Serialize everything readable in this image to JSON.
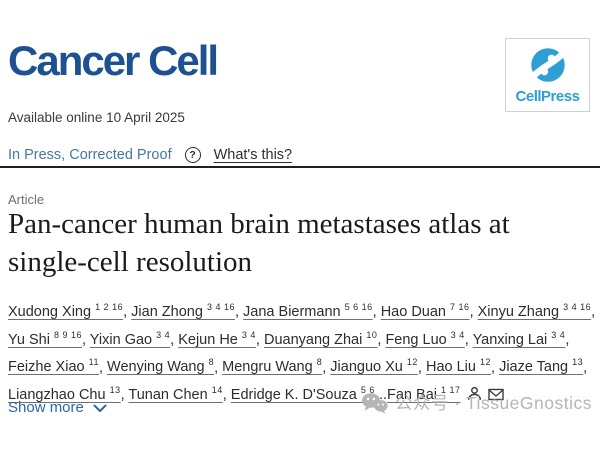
{
  "colors": {
    "logo_blue": "#1d5192",
    "cellpress_blue": "#2d9fd4",
    "status_blue": "#45799f",
    "link_blue": "#2c68a9",
    "text_dark": "#1b1b1b",
    "body_text": "#2d2d2d",
    "muted_gray": "#6e6e6e",
    "watermark_gray": "#b5b5b5",
    "rule_dark": "#202020"
  },
  "header": {
    "journal_name": "Cancer Cell",
    "publisher": "CellPress"
  },
  "meta": {
    "available_online": "Available online 10 April 2025",
    "status": "In Press, Corrected Proof",
    "help_glyph": "?",
    "whats_this": "What's this?",
    "article_type": "Article"
  },
  "title": {
    "line1": "Pan-cancer human brain metastases atlas at",
    "line2": "single-cell resolution"
  },
  "authors": [
    {
      "name": "Xudong Xing",
      "sup": "1 2 16"
    },
    {
      "name": "Jian Zhong",
      "sup": "3 4 16"
    },
    {
      "name": "Jana Biermann",
      "sup": "5 6 16"
    },
    {
      "name": "Hao Duan",
      "sup": "7 16"
    },
    {
      "name": "Xinyu Zhang",
      "sup": "3 4 16"
    },
    {
      "name": "Yu Shi",
      "sup": "8 9 16"
    },
    {
      "name": "Yixin Gao",
      "sup": "3 4"
    },
    {
      "name": "Kejun He",
      "sup": "3 4"
    },
    {
      "name": "Duanyang Zhai",
      "sup": "10"
    },
    {
      "name": "Feng Luo",
      "sup": "3 4"
    },
    {
      "name": "Yanxing Lai",
      "sup": "3 4"
    },
    {
      "name": "Feizhe Xiao",
      "sup": "11"
    },
    {
      "name": "Wenying Wang",
      "sup": "8"
    },
    {
      "name": "Mengru Wang",
      "sup": "8"
    },
    {
      "name": "Jianguo Xu",
      "sup": "12"
    },
    {
      "name": "Hao Liu",
      "sup": "12"
    },
    {
      "name": "Jiaze Tang",
      "sup": "13"
    },
    {
      "name": "Liangzhao Chu",
      "sup": "13"
    },
    {
      "name": "Tunan Chen",
      "sup": "14"
    },
    {
      "name": "Edridge K. D'Souza",
      "sup": "5 6",
      "sep": ""
    },
    {
      "name": "Fan Bai",
      "sup": "1 17",
      "prefix": "...",
      "sep": ""
    }
  ],
  "icons": {
    "help": "question-circle",
    "profile": "person",
    "email": "envelope",
    "expand": "chevron-down",
    "watermark_logo": "wechat"
  },
  "footer": {
    "show_more": "Show more",
    "watermark": "公众号 · TissueGnostics"
  }
}
